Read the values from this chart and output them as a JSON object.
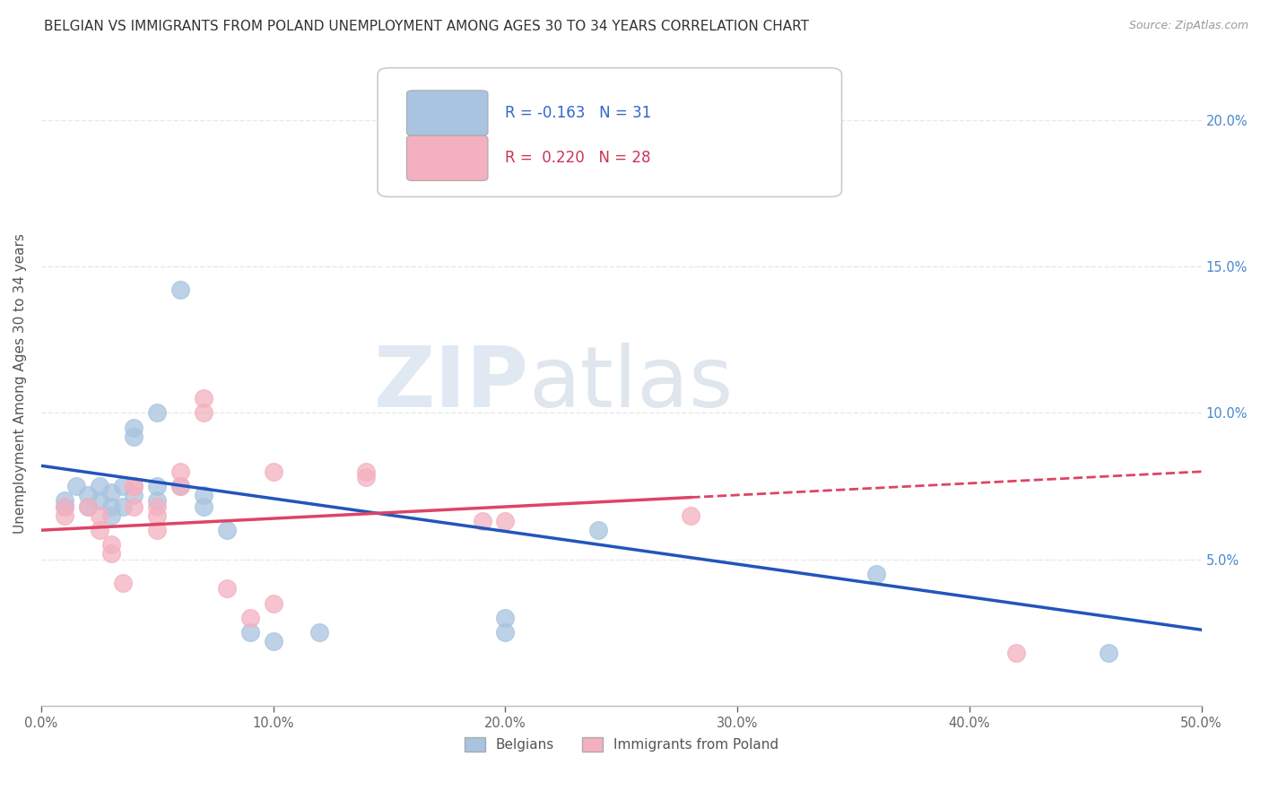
{
  "title": "BELGIAN VS IMMIGRANTS FROM POLAND UNEMPLOYMENT AMONG AGES 30 TO 34 YEARS CORRELATION CHART",
  "source": "Source: ZipAtlas.com",
  "ylabel": "Unemployment Among Ages 30 to 34 years",
  "xlim": [
    0.0,
    0.5
  ],
  "ylim": [
    0.0,
    0.22
  ],
  "watermark_zip": "ZIP",
  "watermark_atlas": "atlas",
  "legend1_r": "-0.163",
  "legend1_n": "31",
  "legend2_r": "0.220",
  "legend2_n": "28",
  "belgian_color": "#a8c4e0",
  "polish_color": "#f4b0c0",
  "belgian_line_color": "#2255bb",
  "polish_line_color": "#dd4466",
  "belgian_dots": [
    [
      0.01,
      0.07
    ],
    [
      0.01,
      0.068
    ],
    [
      0.015,
      0.075
    ],
    [
      0.02,
      0.072
    ],
    [
      0.02,
      0.068
    ],
    [
      0.025,
      0.075
    ],
    [
      0.025,
      0.07
    ],
    [
      0.03,
      0.073
    ],
    [
      0.03,
      0.068
    ],
    [
      0.03,
      0.065
    ],
    [
      0.035,
      0.075
    ],
    [
      0.035,
      0.068
    ],
    [
      0.04,
      0.072
    ],
    [
      0.04,
      0.095
    ],
    [
      0.04,
      0.092
    ],
    [
      0.05,
      0.1
    ],
    [
      0.05,
      0.075
    ],
    [
      0.05,
      0.07
    ],
    [
      0.06,
      0.142
    ],
    [
      0.06,
      0.075
    ],
    [
      0.07,
      0.072
    ],
    [
      0.07,
      0.068
    ],
    [
      0.08,
      0.06
    ],
    [
      0.09,
      0.025
    ],
    [
      0.1,
      0.022
    ],
    [
      0.12,
      0.025
    ],
    [
      0.2,
      0.03
    ],
    [
      0.2,
      0.025
    ],
    [
      0.24,
      0.06
    ],
    [
      0.36,
      0.045
    ],
    [
      0.46,
      0.018
    ]
  ],
  "polish_dots": [
    [
      0.01,
      0.068
    ],
    [
      0.01,
      0.065
    ],
    [
      0.02,
      0.068
    ],
    [
      0.025,
      0.065
    ],
    [
      0.025,
      0.06
    ],
    [
      0.03,
      0.055
    ],
    [
      0.03,
      0.052
    ],
    [
      0.035,
      0.042
    ],
    [
      0.04,
      0.075
    ],
    [
      0.04,
      0.068
    ],
    [
      0.04,
      0.075
    ],
    [
      0.05,
      0.068
    ],
    [
      0.05,
      0.065
    ],
    [
      0.05,
      0.06
    ],
    [
      0.06,
      0.08
    ],
    [
      0.06,
      0.075
    ],
    [
      0.07,
      0.105
    ],
    [
      0.07,
      0.1
    ],
    [
      0.08,
      0.04
    ],
    [
      0.09,
      0.03
    ],
    [
      0.1,
      0.08
    ],
    [
      0.1,
      0.035
    ],
    [
      0.14,
      0.08
    ],
    [
      0.14,
      0.078
    ],
    [
      0.19,
      0.063
    ],
    [
      0.2,
      0.063
    ],
    [
      0.28,
      0.065
    ],
    [
      0.42,
      0.018
    ]
  ],
  "bg_color": "#ffffff",
  "grid_color": "#e8e8e8",
  "title_fontsize": 11,
  "tick_fontsize": 10.5,
  "label_fontsize": 11
}
